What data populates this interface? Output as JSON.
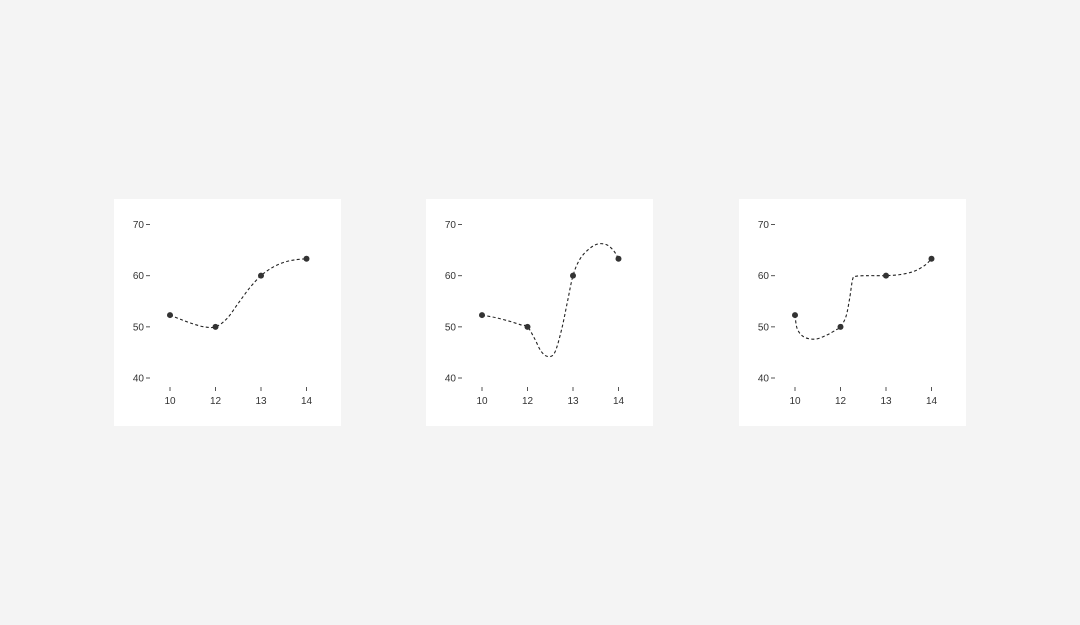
{
  "chart_data": [
    {
      "type": "line",
      "interpolation": "smooth-spline",
      "x": [
        "10",
        "12",
        "13",
        "14"
      ],
      "values": [
        52.3,
        50.0,
        60.0,
        63.3
      ],
      "yticks": [
        "40",
        "50",
        "60",
        "70"
      ],
      "ylim": [
        40,
        70
      ],
      "curve_samples": [
        [
          0.0,
          52.3
        ],
        [
          0.25,
          51.4
        ],
        [
          0.5,
          50.6
        ],
        [
          0.75,
          50.0
        ],
        [
          1.0,
          50.0
        ],
        [
          1.25,
          51.6
        ],
        [
          1.5,
          54.6
        ],
        [
          1.75,
          57.6
        ],
        [
          2.0,
          60.0
        ],
        [
          2.25,
          61.6
        ],
        [
          2.5,
          62.6
        ],
        [
          2.75,
          63.1
        ],
        [
          3.0,
          63.3
        ]
      ]
    },
    {
      "type": "line",
      "interpolation": "overshooting-spline",
      "x": [
        "10",
        "12",
        "13",
        "14"
      ],
      "values": [
        52.3,
        50.0,
        60.0,
        63.3
      ],
      "yticks": [
        "40",
        "50",
        "60",
        "70"
      ],
      "ylim": [
        40,
        70
      ],
      "curve_samples": [
        [
          0.0,
          52.3
        ],
        [
          0.3,
          51.8
        ],
        [
          0.6,
          51.1
        ],
        [
          0.85,
          50.4
        ],
        [
          1.0,
          50.0
        ],
        [
          1.15,
          47.8
        ],
        [
          1.3,
          45.2
        ],
        [
          1.45,
          44.2
        ],
        [
          1.6,
          45.0
        ],
        [
          1.75,
          49.5
        ],
        [
          1.88,
          55.0
        ],
        [
          2.0,
          60.0
        ],
        [
          2.15,
          63.2
        ],
        [
          2.35,
          65.2
        ],
        [
          2.55,
          66.2
        ],
        [
          2.75,
          66.0
        ],
        [
          2.9,
          64.8
        ],
        [
          3.0,
          63.3
        ]
      ]
    },
    {
      "type": "line",
      "interpolation": "step-spline",
      "x": [
        "10",
        "12",
        "13",
        "14"
      ],
      "values": [
        52.3,
        50.0,
        60.0,
        63.3
      ],
      "yticks": [
        "40",
        "50",
        "60",
        "70"
      ],
      "ylim": [
        40,
        70
      ],
      "curve_samples": [
        [
          0.0,
          52.3
        ],
        [
          0.05,
          49.6
        ],
        [
          0.2,
          48.0
        ],
        [
          0.45,
          47.6
        ],
        [
          0.7,
          48.4
        ],
        [
          0.9,
          49.4
        ],
        [
          1.0,
          50.0
        ],
        [
          1.12,
          52.0
        ],
        [
          1.2,
          55.5
        ],
        [
          1.27,
          59.4
        ],
        [
          1.35,
          59.9
        ],
        [
          1.6,
          60.0
        ],
        [
          1.85,
          60.0
        ],
        [
          2.0,
          60.0
        ],
        [
          2.3,
          60.2
        ],
        [
          2.6,
          60.8
        ],
        [
          2.85,
          62.0
        ],
        [
          3.0,
          63.3
        ]
      ]
    }
  ]
}
